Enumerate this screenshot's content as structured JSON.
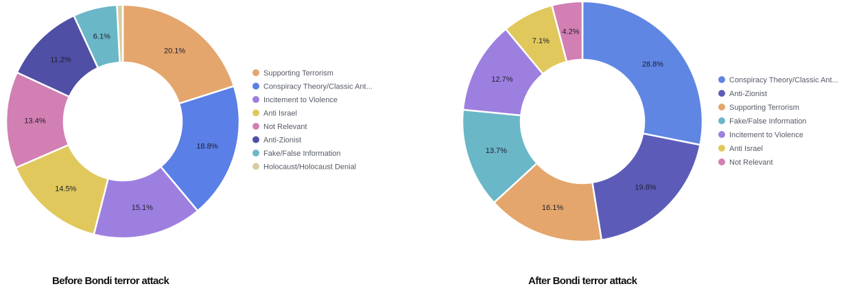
{
  "chart_data": [
    {
      "type": "pie",
      "title": "Before Bondi terror attack",
      "categories": [
        "Supporting Terrorism",
        "Conspiracy Theory/Classic Ant...",
        "Incitement to Violence",
        "Anti Israel",
        "Not Relevant",
        "Anti-Zionist",
        "Fake/False Information",
        "Holocaust/Holocaust Denial"
      ],
      "values": [
        20.1,
        18.8,
        15.1,
        14.5,
        13.4,
        11.2,
        6.1,
        0.8
      ],
      "data_labels": [
        "20.1%",
        "18.8%",
        "15.1%",
        "14.5%",
        "13.4%",
        "11.2%",
        "6.1%",
        ""
      ],
      "slice_order": [
        "Supporting Terrorism",
        "Conspiracy Theory/Classic Ant...",
        "Incitement to Violence",
        "Anti Israel",
        "Not Relevant",
        "Anti-Zionist",
        "Fake/False Information",
        "Holocaust/Holocaust Denial"
      ],
      "legend_position": "right"
    },
    {
      "type": "pie",
      "title": "After Bondi terror attack",
      "categories": [
        "Conspiracy Theory/Classic Ant...",
        "Anti-Zionist",
        "Supporting Terrorism",
        "Fake/False Information",
        "Incitement to Violence",
        "Anti Israel",
        "Not Relevant"
      ],
      "values": [
        28.8,
        19.8,
        16.1,
        13.7,
        12.7,
        7.1,
        4.2
      ],
      "data_labels": [
        "28.8%",
        "19.8%",
        "16.1%",
        "13.7%",
        "12.7%",
        "7.1%",
        "4.2%"
      ],
      "legend_position": "right"
    }
  ],
  "colors": {
    "Supporting Terrorism": "#e4a66c",
    "Conspiracy Theory/Classic Ant...": "#5a7fe6",
    "Incitement to Violence": "#9d7fe0",
    "Anti Israel": "#e0c85c",
    "Not Relevant": "#d27fb3",
    "Anti-Zionist": "#4f4fa6",
    "Fake/False Information": "#6ab7c8",
    "Holocaust/Holocaust Denial": "#d8cda0",
    "Anti-Zionist (after)": "#5c5cb8",
    "Conspiracy Theory/Classic Ant... (after)": "#5f86e2"
  }
}
